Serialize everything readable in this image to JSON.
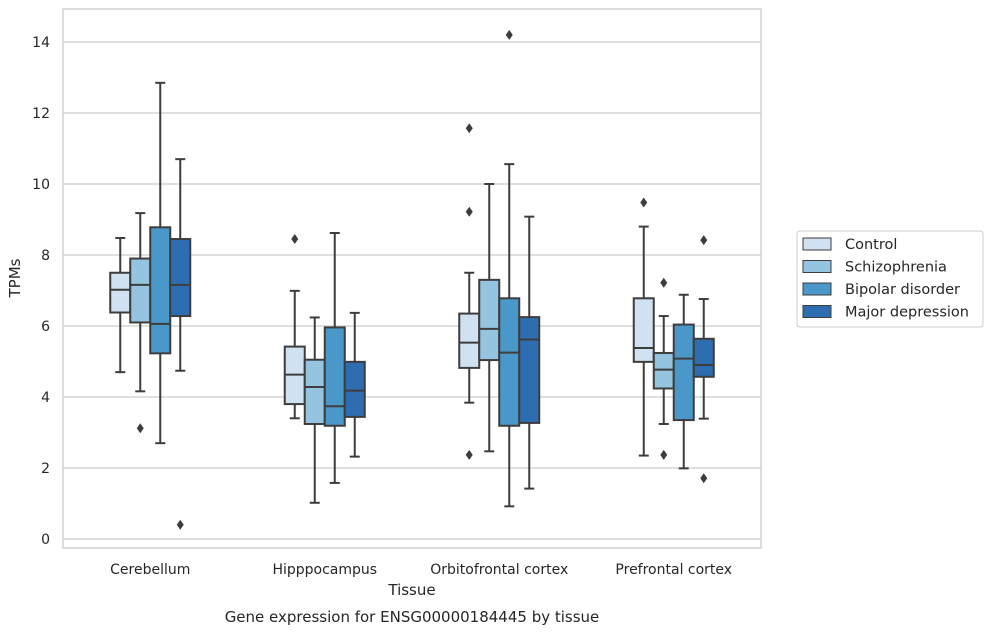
{
  "chart_data": {
    "type": "box",
    "title": "",
    "caption": "Gene expression for ENSG00000184445 by tissue",
    "xlabel": "Tissue",
    "ylabel": "TPMs",
    "ylim": [
      -0.2,
      14.9
    ],
    "yticks": [
      0,
      2,
      4,
      6,
      8,
      10,
      12,
      14
    ],
    "grid": "horizontal",
    "legend_position": "right",
    "categories": [
      "Cerebellum",
      "Hipppocampus",
      "Orbitofrontal cortex",
      "Prefrontal cortex"
    ],
    "series": [
      {
        "name": "Control",
        "color": "#d0e1f2",
        "boxes": [
          {
            "whislo": 4.7,
            "q1": 6.38,
            "med": 7.02,
            "q3": 7.5,
            "whishi": 8.48,
            "fliers": []
          },
          {
            "whislo": 3.4,
            "q1": 3.8,
            "med": 4.63,
            "q3": 5.42,
            "whishi": 6.99,
            "fliers": [
              8.45
            ]
          },
          {
            "whislo": 3.84,
            "q1": 4.82,
            "med": 5.53,
            "q3": 6.35,
            "whishi": 7.5,
            "fliers": [
              11.57,
              9.22,
              2.37
            ]
          },
          {
            "whislo": 2.35,
            "q1": 4.99,
            "med": 5.38,
            "q3": 6.78,
            "whishi": 8.8,
            "fliers": [
              9.48
            ]
          }
        ]
      },
      {
        "name": "Schizophrenia",
        "color": "#94c4df",
        "boxes": [
          {
            "whislo": 4.16,
            "q1": 6.1,
            "med": 7.16,
            "q3": 7.9,
            "whishi": 9.18,
            "fliers": [
              3.12
            ]
          },
          {
            "whislo": 1.02,
            "q1": 3.24,
            "med": 4.28,
            "q3": 5.05,
            "whishi": 6.24,
            "fliers": []
          },
          {
            "whislo": 2.47,
            "q1": 5.04,
            "med": 5.92,
            "q3": 7.3,
            "whishi": 10.0,
            "fliers": []
          },
          {
            "whislo": 3.24,
            "q1": 4.24,
            "med": 4.77,
            "q3": 5.24,
            "whishi": 6.28,
            "fliers": [
              7.22,
              2.37
            ]
          }
        ]
      },
      {
        "name": "Bipolar disorder",
        "color": "#4a98c9",
        "boxes": [
          {
            "whislo": 2.7,
            "q1": 5.23,
            "med": 6.06,
            "q3": 8.78,
            "whishi": 12.85,
            "fliers": []
          },
          {
            "whislo": 1.58,
            "q1": 3.19,
            "med": 3.74,
            "q3": 5.96,
            "whishi": 8.62,
            "fliers": []
          },
          {
            "whislo": 0.92,
            "q1": 3.19,
            "med": 5.25,
            "q3": 6.78,
            "whishi": 10.56,
            "fliers": [
              14.2
            ]
          },
          {
            "whislo": 1.99,
            "q1": 3.35,
            "med": 5.08,
            "q3": 6.04,
            "whishi": 6.88,
            "fliers": []
          }
        ]
      },
      {
        "name": "Major depression",
        "color": "#2e6eb0",
        "boxes": [
          {
            "whislo": 4.74,
            "q1": 6.28,
            "med": 7.16,
            "q3": 8.45,
            "whishi": 10.7,
            "fliers": [
              0.4
            ]
          },
          {
            "whislo": 2.32,
            "q1": 3.44,
            "med": 4.18,
            "q3": 4.99,
            "whishi": 6.37,
            "fliers": []
          },
          {
            "whislo": 1.42,
            "q1": 3.27,
            "med": 5.62,
            "q3": 6.25,
            "whishi": 9.08,
            "fliers": []
          },
          {
            "whislo": 3.39,
            "q1": 4.57,
            "med": 4.9,
            "q3": 5.64,
            "whishi": 6.76,
            "fliers": [
              8.42,
              1.71
            ]
          }
        ]
      }
    ]
  }
}
